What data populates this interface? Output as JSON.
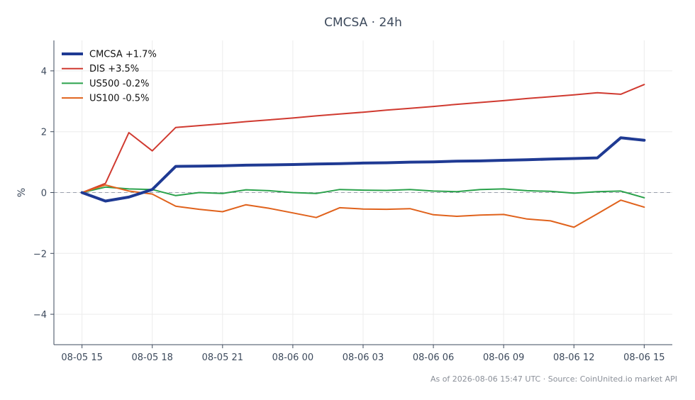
{
  "chart_data": {
    "type": "line",
    "title": "CMCSA · 24h",
    "ylabel": "%",
    "xlabel": "",
    "ylim": [
      -5,
      5
    ],
    "yticks": [
      -4,
      -2,
      0,
      2,
      4
    ],
    "ytick_labels": [
      "−4",
      "−2",
      "0",
      "2",
      "4"
    ],
    "x": [
      0,
      1,
      2,
      3,
      4,
      5,
      6,
      7,
      8,
      9,
      10,
      11,
      12,
      13,
      14,
      15,
      16,
      17,
      18,
      19,
      20,
      21,
      22,
      23,
      24
    ],
    "xlim": [
      -1.2,
      25.2
    ],
    "xticks": [
      0,
      3,
      6,
      9,
      12,
      15,
      18,
      21,
      24
    ],
    "xtick_labels": [
      "08-05 15",
      "08-05 18",
      "08-05 21",
      "08-06 00",
      "08-06 03",
      "08-06 06",
      "08-06 09",
      "08-06 12",
      "08-06 15"
    ],
    "grid": true,
    "legend_position": "top-left",
    "zero_line": true,
    "series": [
      {
        "name": "CMCSA +1.7%",
        "color": "#1f3a93",
        "width": 4,
        "values": [
          0,
          -0.28,
          -0.15,
          0.1,
          0.86,
          0.87,
          0.88,
          0.9,
          0.91,
          0.92,
          0.94,
          0.95,
          0.97,
          0.98,
          1.0,
          1.01,
          1.03,
          1.04,
          1.06,
          1.08,
          1.1,
          1.12,
          1.14,
          1.8,
          1.72
        ]
      },
      {
        "name": "DIS +3.5%",
        "color": "#d03a30",
        "width": 2,
        "values": [
          0,
          0.3,
          1.97,
          1.37,
          2.14,
          2.2,
          2.26,
          2.33,
          2.39,
          2.45,
          2.52,
          2.58,
          2.64,
          2.71,
          2.77,
          2.83,
          2.9,
          2.96,
          3.02,
          3.09,
          3.15,
          3.21,
          3.28,
          3.23,
          3.55
        ]
      },
      {
        "name": "US500 -0.2%",
        "color": "#2ba24c",
        "width": 2,
        "values": [
          0,
          0.18,
          0.12,
          0.1,
          -0.1,
          0.0,
          -0.03,
          0.09,
          0.06,
          0.0,
          -0.03,
          0.1,
          0.08,
          0.07,
          0.1,
          0.05,
          0.03,
          0.1,
          0.12,
          0.06,
          0.04,
          -0.02,
          0.03,
          0.05,
          -0.17
        ]
      },
      {
        "name": "US100 -0.5%",
        "color": "#e0621c",
        "width": 2,
        "values": [
          0,
          0.25,
          0.05,
          -0.05,
          -0.45,
          -0.55,
          -0.63,
          -0.4,
          -0.52,
          -0.67,
          -0.82,
          -0.5,
          -0.54,
          -0.55,
          -0.53,
          -0.73,
          -0.78,
          -0.74,
          -0.72,
          -0.87,
          -0.93,
          -1.14,
          -0.7,
          -0.25,
          -0.48
        ]
      }
    ],
    "footer": "As of 2026-08-06 15:47 UTC · Source: CoinUnited.io market API"
  }
}
